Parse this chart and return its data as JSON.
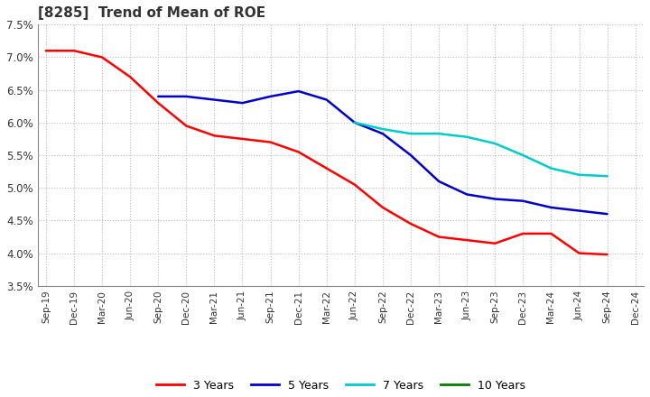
{
  "title": "[8285]  Trend of Mean of ROE",
  "background_color": "#ffffff",
  "grid_color": "#bbbbbb",
  "x_labels": [
    "Sep-19",
    "Dec-19",
    "Mar-20",
    "Jun-20",
    "Sep-20",
    "Dec-20",
    "Mar-21",
    "Jun-21",
    "Sep-21",
    "Dec-21",
    "Mar-22",
    "Jun-22",
    "Sep-22",
    "Dec-22",
    "Mar-23",
    "Jun-23",
    "Sep-23",
    "Dec-23",
    "Mar-24",
    "Jun-24",
    "Sep-24",
    "Dec-24"
  ],
  "series": {
    "3 Years": {
      "color": "#ff0000",
      "values": [
        0.071,
        0.071,
        0.07,
        0.067,
        0.063,
        0.0595,
        0.058,
        0.0575,
        0.057,
        0.0555,
        0.053,
        0.0505,
        0.047,
        0.0445,
        0.0425,
        0.042,
        0.0415,
        0.043,
        0.043,
        0.04,
        0.0398,
        null
      ]
    },
    "5 Years": {
      "color": "#0000cc",
      "values": [
        null,
        null,
        null,
        null,
        0.064,
        0.064,
        0.0635,
        0.063,
        0.064,
        0.0648,
        0.0635,
        0.06,
        0.0583,
        0.055,
        0.051,
        0.049,
        0.0483,
        0.048,
        0.047,
        0.0465,
        0.046,
        null
      ]
    },
    "7 Years": {
      "color": "#00cccc",
      "values": [
        null,
        null,
        null,
        null,
        null,
        null,
        null,
        null,
        null,
        null,
        null,
        0.06,
        0.059,
        0.0583,
        0.0583,
        0.0578,
        0.0568,
        0.055,
        0.053,
        0.052,
        0.0518,
        null
      ]
    },
    "10 Years": {
      "color": "#008000",
      "values": [
        null,
        null,
        null,
        null,
        null,
        null,
        null,
        null,
        null,
        null,
        null,
        null,
        null,
        null,
        null,
        null,
        null,
        null,
        null,
        null,
        null,
        null
      ]
    }
  },
  "ylim": [
    0.035,
    0.075
  ],
  "yticks": [
    0.035,
    0.04,
    0.045,
    0.05,
    0.055,
    0.06,
    0.065,
    0.07,
    0.075
  ],
  "legend_labels": [
    "3 Years",
    "5 Years",
    "7 Years",
    "10 Years"
  ],
  "legend_colors": [
    "#ff0000",
    "#0000cc",
    "#00cccc",
    "#008000"
  ]
}
